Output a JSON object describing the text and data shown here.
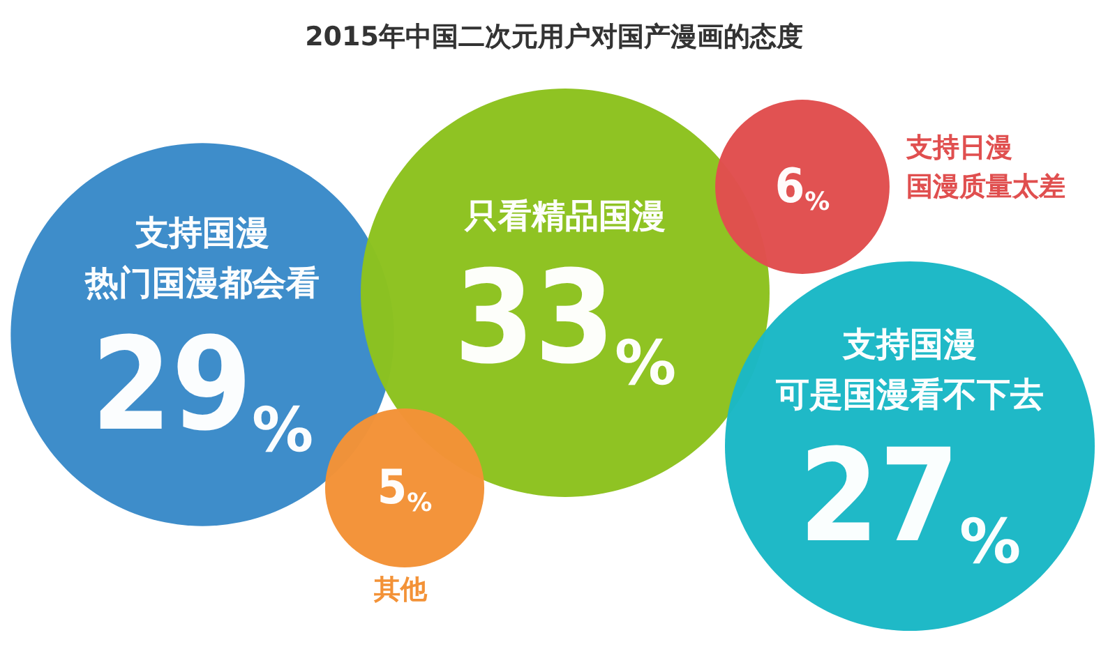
{
  "chart_data": {
    "type": "other",
    "title": "2015年中国二次元用户对国产漫画的态度",
    "categories": [
      "支持国漫热门国漫都会看",
      "只看精品国漫",
      "其他",
      "支持日漫国漫质量太差",
      "支持国漫可是国漫看不下去"
    ],
    "values": [
      29,
      33,
      5,
      6,
      27
    ],
    "value_labels": [
      "29%",
      "33%",
      "5%",
      "6%",
      "27%"
    ],
    "colors": [
      "#3a8bc9",
      "#8dc21f",
      "#f39237",
      "#e04f4f",
      "#1bb8c6"
    ]
  }
}
